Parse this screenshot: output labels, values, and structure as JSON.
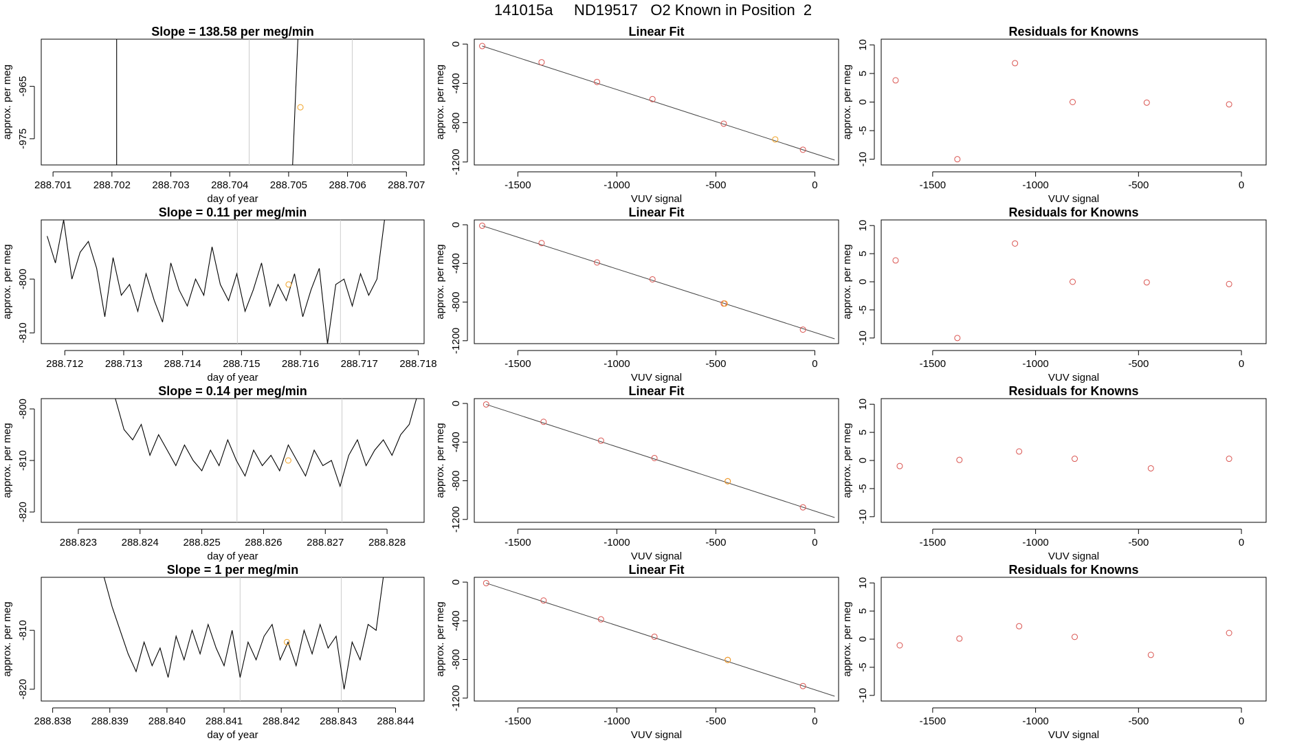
{
  "page_title": "141015a     ND19517   O2 Known in Position  2",
  "colors": {
    "line": "#000000",
    "known_point": "#d9534f",
    "highlight_point": "#f0a020",
    "fit_line": "#444444",
    "marker_line": "#cccccc"
  },
  "chart_data": [
    {
      "type": "line",
      "title": "Slope =  138.58  per meg/min",
      "xlabel": "day of year",
      "ylabel": "approx. per meg",
      "xlim": [
        288.7008,
        288.7073
      ],
      "ylim": [
        -980,
        -956
      ],
      "xticks": [
        "288.701",
        "288.702",
        "288.703",
        "288.704",
        "288.705",
        "288.706",
        "288.707"
      ],
      "yticks": [
        "-965",
        "-975"
      ],
      "ytick_values": [
        -965,
        -975
      ],
      "markers": [
        288.70433,
        288.70608
      ],
      "series": [
        {
          "x": [
            288.70208,
            288.70208
          ],
          "y": [
            -990,
            -950
          ]
        },
        {
          "x": [
            288.70503,
            288.70518
          ],
          "y": [
            -990,
            -950
          ]
        }
      ],
      "highlight": {
        "x": 288.7052,
        "y": -969
      }
    },
    {
      "type": "scatter",
      "title": "Linear Fit",
      "xlabel": "VUV signal",
      "ylabel": "approx. per meg",
      "xlim": [
        -1720,
        120
      ],
      "ylim": [
        -1230,
        50
      ],
      "xticks": [
        "-1500",
        "-1000",
        "-500",
        "0"
      ],
      "yticks": [
        "0",
        "-400",
        "-800",
        "-1200"
      ],
      "points": {
        "x": [
          -1680,
          -1380,
          -1100,
          -820,
          -460,
          -60
        ],
        "y": [
          -20,
          -185,
          -385,
          -560,
          -810,
          -1075
        ]
      },
      "highlight": {
        "x": -200,
        "y": -970
      },
      "fit": {
        "x": [
          -1680,
          100
        ],
        "y": [
          -20,
          -1180
        ]
      }
    },
    {
      "type": "scatter",
      "title": "Residuals for Knowns",
      "xlabel": "VUV signal",
      "ylabel": "approx. per meg",
      "xlim": [
        -1750,
        120
      ],
      "ylim": [
        -11,
        11
      ],
      "xticks": [
        "-1500",
        "-1000",
        "-500",
        "0"
      ],
      "yticks": [
        "10",
        "5",
        "0",
        "-5",
        "-10"
      ],
      "points": {
        "x": [
          -1680,
          -1380,
          -1100,
          -820,
          -460,
          -60
        ],
        "y": [
          3.8,
          -10,
          6.8,
          0,
          -0.1,
          -0.4
        ]
      }
    },
    {
      "type": "line",
      "title": "Slope =  0.11  per meg/min",
      "xlabel": "day of year",
      "ylabel": "approx. per meg",
      "xlim": [
        288.7116,
        288.7181
      ],
      "ylim": [
        -812,
        -789
      ],
      "xticks": [
        "288.712",
        "288.713",
        "288.714",
        "288.715",
        "288.716",
        "288.717",
        "288.718"
      ],
      "yticks": [
        "-800",
        "-810"
      ],
      "ytick_values": [
        -800,
        -810
      ],
      "markers": [
        288.71493,
        288.71668
      ],
      "series": [
        {
          "x": [
            288.7117,
            288.71184,
            288.71198,
            288.71212,
            288.71226,
            288.7124,
            288.71254,
            288.71268,
            288.71282,
            288.71296,
            288.7131,
            288.71324,
            288.71338,
            288.71352,
            288.71366,
            288.7138,
            288.71394,
            288.71408,
            288.71422,
            288.71436,
            288.7145,
            288.71464,
            288.71478,
            288.71492,
            288.71506,
            288.7152,
            288.71534,
            288.71548,
            288.71562,
            288.71576,
            288.7159,
            288.71604,
            288.71618,
            288.71632,
            288.71646,
            288.7166,
            288.71674,
            288.71688,
            288.71702,
            288.71716,
            288.7173,
            288.71744
          ],
          "y": [
            -792,
            -797,
            -789,
            -800,
            -795,
            -793,
            -798,
            -807,
            -796,
            -803,
            -801,
            -806,
            -799,
            -804,
            -808,
            -797,
            -802,
            -805,
            -800,
            -803,
            -794,
            -801,
            -804,
            -799,
            -806,
            -802,
            -797,
            -805,
            -801,
            -804,
            -799,
            -807,
            -802,
            -798,
            -812,
            -801,
            -800,
            -805,
            -799,
            -803,
            -800,
            -788
          ]
        }
      ],
      "highlight": {
        "x": 288.7158,
        "y": -801
      }
    },
    {
      "type": "scatter",
      "title": "Linear Fit",
      "xlabel": "VUV signal",
      "ylabel": "approx. per meg",
      "xlim": [
        -1720,
        120
      ],
      "ylim": [
        -1230,
        50
      ],
      "xticks": [
        "-1500",
        "-1000",
        "-500",
        "0"
      ],
      "yticks": [
        "0",
        "-400",
        "-800",
        "-1200"
      ],
      "points": {
        "x": [
          -1680,
          -1380,
          -1100,
          -820,
          -460,
          -60
        ],
        "y": [
          -10,
          -190,
          -390,
          -565,
          -815,
          -1085
        ]
      },
      "highlight": {
        "x": -455,
        "y": -815
      },
      "fit": {
        "x": [
          -1680,
          100
        ],
        "y": [
          -10,
          -1180
        ]
      }
    },
    {
      "type": "scatter",
      "title": "Residuals for Knowns",
      "xlabel": "VUV signal",
      "ylabel": "approx. per meg",
      "xlim": [
        -1750,
        120
      ],
      "ylim": [
        -11,
        11
      ],
      "xticks": [
        "-1500",
        "-1000",
        "-500",
        "0"
      ],
      "yticks": [
        "10",
        "5",
        "0",
        "-5",
        "-10"
      ],
      "points": {
        "x": [
          -1680,
          -1380,
          -1100,
          -820,
          -460,
          -60
        ],
        "y": [
          3.8,
          -10,
          6.8,
          0,
          -0.1,
          -0.4
        ]
      }
    },
    {
      "type": "line",
      "title": "Slope =  0.14  per meg/min",
      "xlabel": "day of year",
      "ylabel": "approx. per meg",
      "xlim": [
        288.8224,
        288.8286
      ],
      "ylim": [
        -822,
        -798
      ],
      "xticks": [
        "288.823",
        "288.824",
        "288.825",
        "288.826",
        "288.827",
        "288.828"
      ],
      "yticks": [
        "-800",
        "-810",
        "-820"
      ],
      "ytick_values": [
        -800,
        -810,
        -820
      ],
      "markers": [
        288.82557,
        288.82727
      ],
      "series": [
        {
          "x": [
            288.8236,
            288.82374,
            288.82388,
            288.82402,
            288.82416,
            288.8243,
            288.82444,
            288.82458,
            288.82472,
            288.82486,
            288.825,
            288.82514,
            288.82528,
            288.82542,
            288.82556,
            288.8257,
            288.82584,
            288.82598,
            288.82612,
            288.82626,
            288.8264,
            288.82654,
            288.82668,
            288.82682,
            288.82696,
            288.8271,
            288.82724,
            288.82738,
            288.82752,
            288.82766,
            288.8278,
            288.82794,
            288.82808,
            288.82822,
            288.82836,
            288.8285
          ],
          "y": [
            -798,
            -804,
            -806,
            -803,
            -809,
            -805,
            -808,
            -811,
            -807,
            -810,
            -812,
            -808,
            -811,
            -806,
            -810,
            -813,
            -808,
            -811,
            -809,
            -812,
            -807,
            -810,
            -813,
            -808,
            -811,
            -810,
            -815,
            -809,
            -806,
            -811,
            -808,
            -806,
            -809,
            -805,
            -803,
            -797
          ]
        }
      ],
      "highlight": {
        "x": 288.8264,
        "y": -810
      }
    },
    {
      "type": "scatter",
      "title": "Linear Fit",
      "xlabel": "VUV signal",
      "ylabel": "approx. per meg",
      "xlim": [
        -1720,
        120
      ],
      "ylim": [
        -1230,
        50
      ],
      "xticks": [
        "-1500",
        "-1000",
        "-500",
        "0"
      ],
      "yticks": [
        "0",
        "-400",
        "-800",
        "-1200"
      ],
      "points": {
        "x": [
          -1660,
          -1370,
          -1080,
          -810,
          -440,
          -60
        ],
        "y": [
          -10,
          -190,
          -385,
          -565,
          -805,
          -1075
        ]
      },
      "highlight": {
        "x": -440,
        "y": -805
      },
      "fit": {
        "x": [
          -1660,
          100
        ],
        "y": [
          -10,
          -1180
        ]
      }
    },
    {
      "type": "scatter",
      "title": "Residuals for Knowns",
      "xlabel": "VUV signal",
      "ylabel": "approx. per meg",
      "xlim": [
        -1750,
        120
      ],
      "ylim": [
        -11,
        11
      ],
      "xticks": [
        "-1500",
        "-1000",
        "-500",
        "0"
      ],
      "yticks": [
        "10",
        "5",
        "0",
        "-5",
        "-10"
      ],
      "points": {
        "x": [
          -1660,
          -1370,
          -1080,
          -810,
          -440,
          -60
        ],
        "y": [
          -1,
          0.1,
          1.6,
          0.3,
          -1.4,
          0.3
        ]
      }
    },
    {
      "type": "line",
      "title": "Slope =  1  per meg/min",
      "xlabel": "day of year",
      "ylabel": "approx. per meg",
      "xlim": [
        288.8378,
        288.8445
      ],
      "ylim": [
        -822,
        -801
      ],
      "xticks": [
        "288.838",
        "288.839",
        "288.840",
        "288.841",
        "288.842",
        "288.843",
        "288.844"
      ],
      "yticks": [
        "-810",
        "-820"
      ],
      "ytick_values": [
        -810,
        -820
      ],
      "markers": [
        288.84128,
        288.84305
      ],
      "series": [
        {
          "x": [
            288.8389,
            288.83904,
            288.83918,
            288.83932,
            288.83946,
            288.8396,
            288.83974,
            288.83988,
            288.84002,
            288.84016,
            288.8403,
            288.84044,
            288.84058,
            288.84072,
            288.84086,
            288.841,
            288.84114,
            288.84128,
            288.84142,
            288.84156,
            288.8417,
            288.84184,
            288.84198,
            288.84212,
            288.84226,
            288.8424,
            288.84254,
            288.84268,
            288.84282,
            288.84296,
            288.8431,
            288.84324,
            288.84338,
            288.84352,
            288.84366,
            288.8438
          ],
          "y": [
            -801,
            -806,
            -810,
            -814,
            -817,
            -812,
            -816,
            -813,
            -818,
            -811,
            -815,
            -810,
            -814,
            -809,
            -813,
            -816,
            -810,
            -818,
            -812,
            -815,
            -811,
            -809,
            -815,
            -812,
            -816,
            -810,
            -814,
            -809,
            -813,
            -811,
            -820,
            -812,
            -815,
            -809,
            -810,
            -800
          ]
        }
      ],
      "highlight": {
        "x": 288.8421,
        "y": -812
      }
    },
    {
      "type": "scatter",
      "title": "Linear Fit",
      "xlabel": "VUV signal",
      "ylabel": "approx. per meg",
      "xlim": [
        -1720,
        120
      ],
      "ylim": [
        -1230,
        50
      ],
      "xticks": [
        "-1500",
        "-1000",
        "-500",
        "0"
      ],
      "yticks": [
        "0",
        "-400",
        "-800",
        "-1200"
      ],
      "points": {
        "x": [
          -1660,
          -1370,
          -1080,
          -810,
          -440,
          -60
        ],
        "y": [
          -10,
          -190,
          -385,
          -565,
          -805,
          -1075
        ]
      },
      "highlight": {
        "x": -440,
        "y": -805
      },
      "fit": {
        "x": [
          -1660,
          100
        ],
        "y": [
          -10,
          -1180
        ]
      }
    },
    {
      "type": "scatter",
      "title": "Residuals for Knowns",
      "xlabel": "VUV signal",
      "ylabel": "approx. per meg",
      "xlim": [
        -1750,
        120
      ],
      "ylim": [
        -11,
        11
      ],
      "xticks": [
        "-1500",
        "-1000",
        "-500",
        "0"
      ],
      "yticks": [
        "10",
        "5",
        "0",
        "-5",
        "-10"
      ],
      "points": {
        "x": [
          -1660,
          -1370,
          -1080,
          -810,
          -440,
          -60
        ],
        "y": [
          -1.1,
          0.1,
          2.3,
          0.4,
          -2.8,
          1.1
        ]
      }
    }
  ]
}
